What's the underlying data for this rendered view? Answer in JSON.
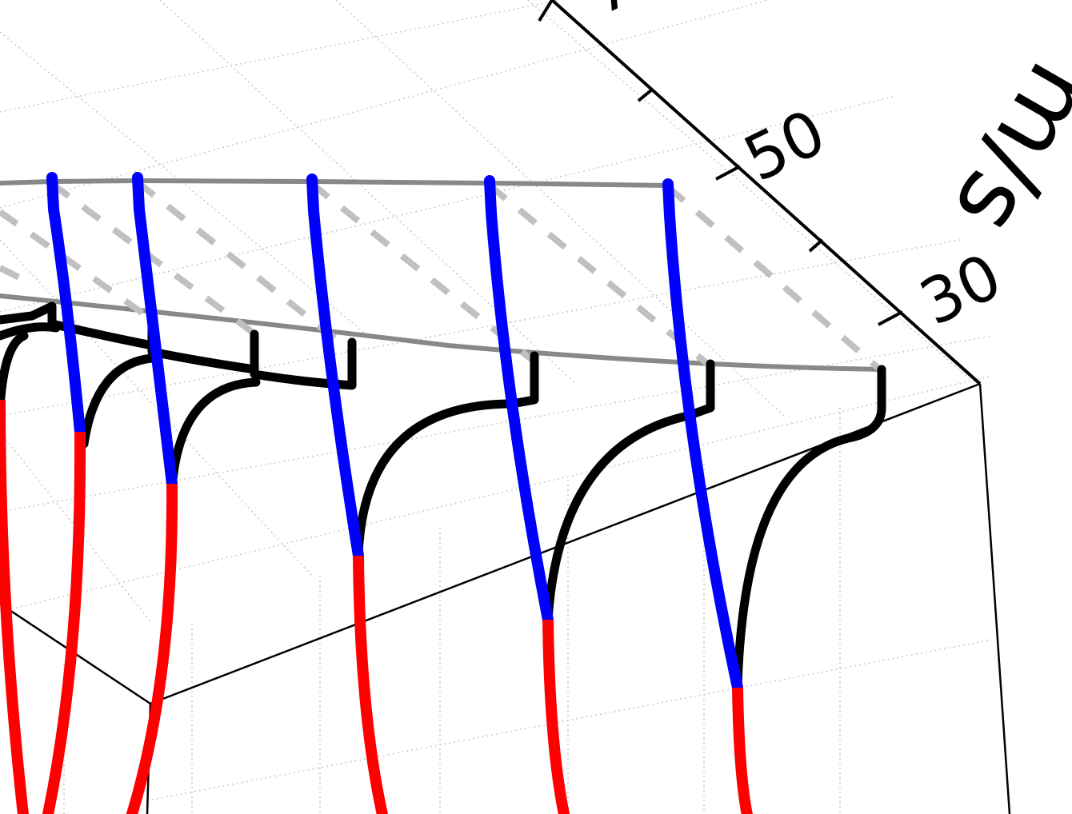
{
  "chart_data": {
    "type": "line",
    "title": "",
    "view": "3d-perspective-cropped",
    "axes": {
      "depth_axis": {
        "visible_tick_labels": [
          "30",
          "50"
        ],
        "partial_title": "m/s",
        "partial_tick_fragment": "7"
      }
    },
    "grid": true,
    "colors": {
      "upper_segment": "#0000ff",
      "lower_segment": "#ff0000",
      "profile": "#000000",
      "envelope": "#888888",
      "dashed": "#c0c0c0"
    },
    "curves": [
      {
        "id": 1,
        "color_break_fraction": 0.46
      },
      {
        "id": 2,
        "color_break_fraction": 0.45
      },
      {
        "id": 3,
        "color_break_fraction": 0.43
      },
      {
        "id": 4,
        "color_break_fraction": 0.41
      },
      {
        "id": 5,
        "color_break_fraction": 0.42
      }
    ]
  }
}
